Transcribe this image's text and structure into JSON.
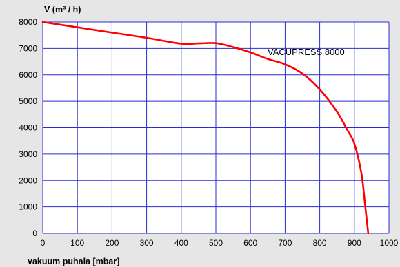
{
  "chart_data": {
    "type": "line",
    "ylabel": "V (m³ / h)",
    "xlabel": "vakuum puhala [mbar]",
    "xlim": [
      0,
      1000
    ],
    "ylim": [
      0,
      8000
    ],
    "x_ticks": [
      0,
      100,
      200,
      300,
      400,
      500,
      600,
      700,
      800,
      900,
      1000
    ],
    "y_ticks": [
      0,
      1000,
      2000,
      3000,
      4000,
      5000,
      6000,
      7000,
      8000
    ],
    "grid": true,
    "series": [
      {
        "name": "VACUPRESS 8000",
        "color": "#ff0000",
        "x": [
          0,
          100,
          200,
          300,
          400,
          450,
          500,
          550,
          600,
          650,
          700,
          750,
          800,
          850,
          880,
          900,
          920,
          930,
          940
        ],
        "y": [
          8000,
          7800,
          7600,
          7400,
          7180,
          7190,
          7200,
          7050,
          6850,
          6600,
          6400,
          6050,
          5450,
          4600,
          3900,
          3400,
          2300,
          1200,
          0
        ]
      }
    ]
  },
  "colors": {
    "background": "#e6e6e6",
    "plot_background": "#ffffff",
    "grid": "#2b2bd6"
  }
}
